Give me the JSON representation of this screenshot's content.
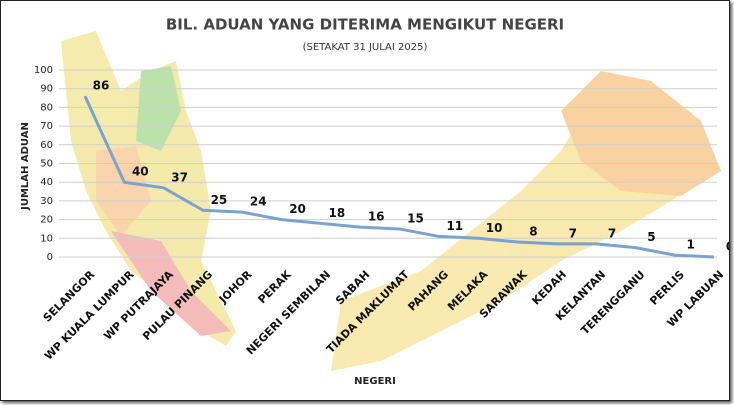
{
  "chart_data": {
    "type": "line",
    "title": "BIL. ADUAN YANG DITERIMA MENGIKUT NEGERI",
    "subtitle": "(SETAKAT 31 JULAI 2025)",
    "x_label": "NEGERI",
    "y_label": "JUMLAH ADUAN",
    "categories": [
      "SELANGOR",
      "WP KUALA LUMPUR",
      "WP PUTRAJAYA",
      "PULAU PINANG",
      "JOHOR",
      "PERAK",
      "NEGERI SEMBILAN",
      "SABAH",
      "TIADA MAKLUMAT",
      "PAHANG",
      "MELAKA",
      "SARAWAK",
      "KEDAH",
      "KELANTAN",
      "TERENGGANU",
      "PERLIS",
      "WP LABUAN"
    ],
    "values": [
      86,
      40,
      37,
      25,
      24,
      20,
      18,
      16,
      15,
      11,
      10,
      8,
      7,
      7,
      5,
      1,
      0
    ],
    "color": "#7ba3cf",
    "ylim": [
      0,
      100
    ],
    "yticks": [
      0,
      10,
      20,
      30,
      40,
      50,
      60,
      70,
      80,
      90,
      100
    ],
    "grid": true
  }
}
